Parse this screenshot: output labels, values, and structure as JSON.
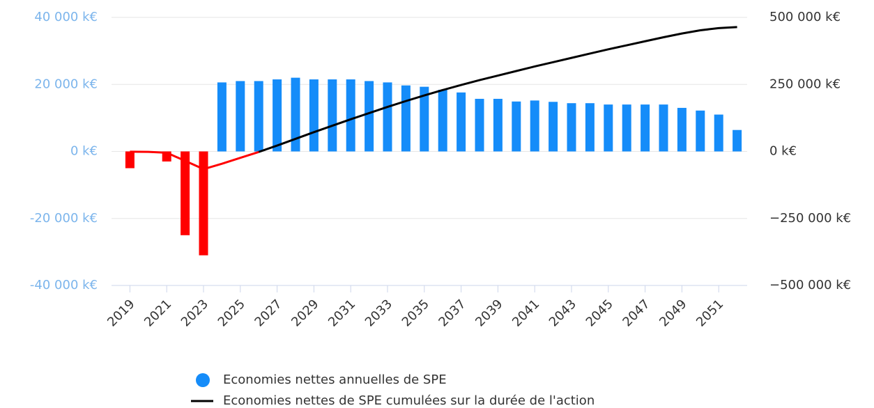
{
  "chart_data": {
    "type": "bar_line",
    "x": [
      2019,
      2020,
      2021,
      2022,
      2023,
      2024,
      2025,
      2026,
      2027,
      2028,
      2029,
      2030,
      2031,
      2032,
      2033,
      2034,
      2035,
      2036,
      2037,
      2038,
      2039,
      2040,
      2041,
      2042,
      2043,
      2044,
      2045,
      2046,
      2047,
      2048,
      2049,
      2050,
      2051,
      2052
    ],
    "xlim": [
      2018,
      2053
    ],
    "xticks": [
      2019,
      2021,
      2023,
      2025,
      2027,
      2029,
      2031,
      2033,
      2035,
      2037,
      2039,
      2041,
      2043,
      2045,
      2047,
      2049,
      2051
    ],
    "ylim": [
      -40000,
      40000
    ],
    "yticks": [
      {
        "value": -40000,
        "label": "-40 000 k€"
      },
      {
        "value": -20000,
        "label": "-20 000 k€"
      },
      {
        "value": 0,
        "label": "0 k€"
      },
      {
        "value": 20000,
        "label": "20 000 k€"
      },
      {
        "value": 40000,
        "label": "40 000 k€"
      }
    ],
    "y2lim": [
      -500000,
      500000
    ],
    "y2ticks": [
      {
        "value": -500000,
        "label": "−500 000 k€"
      },
      {
        "value": -250000,
        "label": "−250 000 k€"
      },
      {
        "value": 0,
        "label": "0 k€"
      },
      {
        "value": 250000,
        "label": "250 000 k€"
      },
      {
        "value": 500000,
        "label": "500 000 k€"
      }
    ],
    "grid": true,
    "series": [
      {
        "name": "Economies nettes annuelles de SPE",
        "color": "#158cf9",
        "negative_color": "#ff0000",
        "kind": "bar",
        "values": [
          -5000,
          0,
          -3000,
          -25000,
          -31000,
          20600,
          21000,
          21000,
          21500,
          22000,
          21500,
          21500,
          21500,
          21000,
          20600,
          19700,
          19300,
          18400,
          17600,
          15700,
          15700,
          14900,
          15200,
          14800,
          14400,
          14400,
          14000,
          14000,
          14000,
          14000,
          13000,
          12200,
          11000,
          6400
        ]
      },
      {
        "name": "Economies nettes de SPE cumulées sur la durée de l'action",
        "color": "#000000",
        "negative_color": "#ff0000",
        "kind": "line",
        "axis": "y2",
        "values": [
          -1000,
          -1500,
          -5000,
          -35000,
          -66000,
          -46000,
          -24000,
          -2000,
          22000,
          47000,
          72000,
          96000,
          120000,
          143000,
          166000,
          188000,
          209000,
          229000,
          248000,
          266000,
          283000,
          300000,
          317000,
          333000,
          349000,
          365000,
          381000,
          396000,
          411000,
          426000,
          440000,
          452000,
          460000,
          464000
        ]
      }
    ]
  }
}
